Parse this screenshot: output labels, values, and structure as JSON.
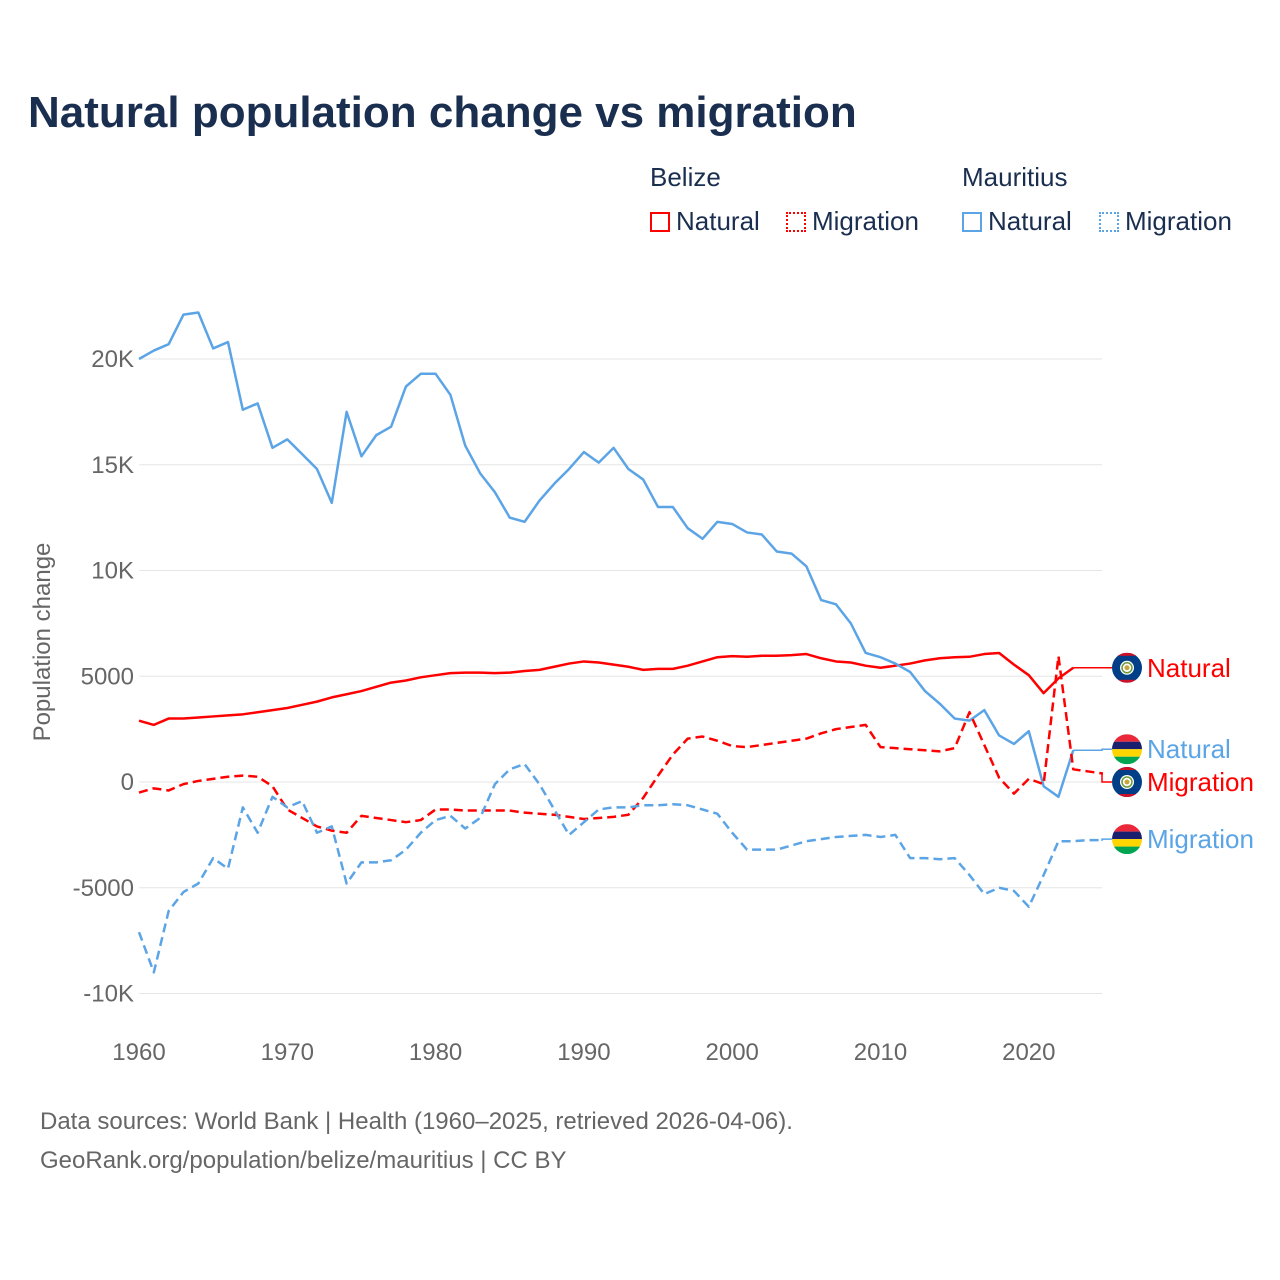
{
  "title": "Natural population change vs migration",
  "legend": {
    "groups": [
      {
        "country": "Belize",
        "items": [
          {
            "label": "Natural",
            "color": "#ff0000",
            "style": "solid"
          },
          {
            "label": "Migration",
            "color": "#ff0000",
            "style": "dotted"
          }
        ]
      },
      {
        "country": "Mauritius",
        "items": [
          {
            "label": "Natural",
            "color": "#5ba4e6",
            "style": "solid"
          },
          {
            "label": "Migration",
            "color": "#5ba4e6",
            "style": "dotted"
          }
        ]
      }
    ]
  },
  "footer": {
    "line1": "Data sources: World Bank | Health (1960–2025, retrieved 2026-04-06).",
    "line2": "GeoRank.org/population/belize/mauritius | CC BY"
  },
  "chart_data": {
    "type": "line",
    "title": "Natural population change vs migration",
    "xlabel": "",
    "ylabel": "Population change",
    "xlim": [
      1960,
      2025
    ],
    "ylim": [
      -10000,
      22500
    ],
    "x_ticks": [
      1960,
      1970,
      1980,
      1990,
      2000,
      2010,
      2020
    ],
    "x_tick_labels": [
      "1960",
      "1970",
      "1980",
      "1990",
      "2000",
      "2010",
      "2020"
    ],
    "y_ticks": [
      20000,
      15000,
      10000,
      5000,
      0,
      -5000,
      -10000
    ],
    "y_tick_labels": [
      "20K",
      "15K",
      "10K",
      "5000",
      "0",
      "-5000",
      "-10K"
    ],
    "grid": true,
    "legend_position": "top-right",
    "series": [
      {
        "name": "Belize Natural",
        "country": "Belize",
        "end_label": "Natural",
        "flag": "belize",
        "color": "#ff0000",
        "dash": "solid",
        "label_value": 5400,
        "start_year": 1960,
        "values": [
          2900,
          2700,
          3000,
          3000,
          3050,
          3100,
          3150,
          3200,
          3300,
          3400,
          3500,
          3650,
          3800,
          4000,
          4150,
          4300,
          4500,
          4700,
          4800,
          4950,
          5050,
          5150,
          5170,
          5170,
          5150,
          5170,
          5250,
          5300,
          5450,
          5600,
          5700,
          5650,
          5550,
          5450,
          5300,
          5350,
          5350,
          5500,
          5700,
          5900,
          5950,
          5920,
          5970,
          5970,
          6000,
          6050,
          5850,
          5700,
          5650,
          5500,
          5400,
          5500,
          5600,
          5750,
          5850,
          5900,
          5920,
          6050,
          6100,
          5550,
          5050,
          4200,
          4900,
          5400
        ]
      },
      {
        "name": "Mauritius Natural",
        "country": "Mauritius",
        "end_label": "Natural",
        "flag": "mauritius",
        "color": "#5ba4e6",
        "dash": "solid",
        "label_value": 1550,
        "start_year": 1960,
        "values": [
          20000,
          20400,
          20700,
          22100,
          22200,
          20500,
          20800,
          17600,
          17900,
          15800,
          16200,
          15500,
          14800,
          13200,
          17500,
          15400,
          16400,
          16800,
          18700,
          19300,
          19300,
          18300,
          15900,
          14600,
          13700,
          12500,
          12300,
          13300,
          14100,
          14800,
          15600,
          15100,
          15800,
          14800,
          14300,
          13000,
          13000,
          12000,
          11500,
          12300,
          12200,
          11800,
          11700,
          10900,
          10800,
          10200,
          8600,
          8400,
          7500,
          6100,
          5900,
          5600,
          5200,
          4300,
          3700,
          3000,
          2900,
          3400,
          2200,
          1800,
          2400,
          -200,
          -700,
          1500
        ]
      },
      {
        "name": "Belize Migration",
        "country": "Belize",
        "end_label": "Migration",
        "flag": "belize",
        "color": "#ff0000",
        "dash": "dashed",
        "label_value": 0,
        "start_year": 1960,
        "values": [
          -500,
          -300,
          -400,
          -100,
          50,
          150,
          250,
          300,
          250,
          -200,
          -1300,
          -1700,
          -2100,
          -2300,
          -2400,
          -1600,
          -1700,
          -1800,
          -1900,
          -1800,
          -1300,
          -1300,
          -1350,
          -1350,
          -1350,
          -1350,
          -1450,
          -1500,
          -1550,
          -1650,
          -1750,
          -1700,
          -1650,
          -1550,
          -750,
          300,
          1300,
          2050,
          2150,
          1950,
          1700,
          1650,
          1750,
          1850,
          1950,
          2050,
          2300,
          2500,
          2600,
          2700,
          1650,
          1600,
          1550,
          1500,
          1450,
          1600,
          3300,
          1750,
          200,
          -550,
          150,
          -100,
          5950,
          600,
          500,
          400
        ]
      },
      {
        "name": "Mauritius Migration",
        "country": "Mauritius",
        "end_label": "Migration",
        "flag": "mauritius",
        "color": "#5ba4e6",
        "dash": "dashed",
        "label_value": -2700,
        "start_year": 1960,
        "values": [
          -7100,
          -9000,
          -6100,
          -5200,
          -4800,
          -3600,
          -4100,
          -1200,
          -2400,
          -700,
          -1200,
          -900,
          -2400,
          -2100,
          -4800,
          -3800,
          -3800,
          -3700,
          -3200,
          -2400,
          -1800,
          -1600,
          -2200,
          -1700,
          -100,
          600,
          850,
          -100,
          -1300,
          -2500,
          -1900,
          -1300,
          -1200,
          -1200,
          -1100,
          -1100,
          -1050,
          -1100,
          -1300,
          -1500,
          -2400,
          -3200,
          -3200,
          -3200,
          -3000,
          -2800,
          -2700,
          -2600,
          -2550,
          -2500,
          -2600,
          -2500,
          -3600,
          -3600,
          -3650,
          -3600,
          -4400,
          -5300,
          -5000,
          -5150,
          -5900,
          -4400,
          -2800,
          -2800,
          -2750,
          -2750
        ]
      }
    ]
  }
}
